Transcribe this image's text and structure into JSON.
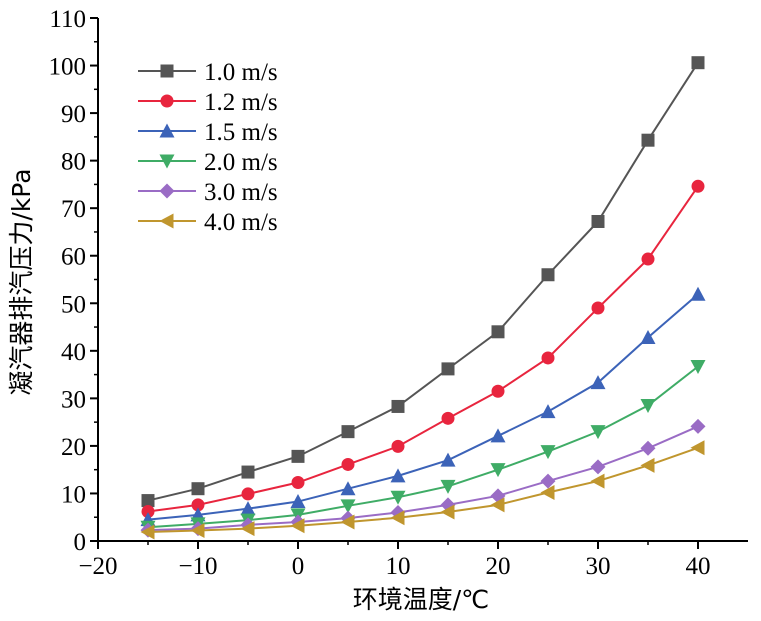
{
  "chart_data": {
    "type": "line",
    "title": "",
    "xlabel": "环境温度/℃",
    "ylabel": "凝汽器排汽压力/kPa",
    "xlim": [
      -20,
      45
    ],
    "ylim": [
      0,
      110
    ],
    "xticks": [
      -20,
      -10,
      0,
      10,
      20,
      30,
      40
    ],
    "yticks": [
      0,
      10,
      20,
      30,
      40,
      50,
      60,
      70,
      80,
      90,
      100,
      110
    ],
    "grid": false,
    "legend_position": "top-left",
    "x": [
      -15,
      -10,
      -5,
      0,
      5,
      10,
      15,
      20,
      25,
      30,
      35,
      40
    ],
    "series": [
      {
        "name": "1.0 m/s",
        "color": "#555555",
        "marker": "square",
        "values": [
          8.5,
          11.0,
          14.5,
          17.8,
          23.0,
          28.3,
          36.2,
          44.0,
          56.0,
          67.2,
          84.3,
          100.6
        ]
      },
      {
        "name": "1.2 m/s",
        "color": "#e8253e",
        "marker": "circle",
        "values": [
          6.2,
          7.6,
          9.9,
          12.3,
          16.1,
          19.9,
          25.8,
          31.5,
          38.5,
          49.0,
          59.3,
          74.6
        ]
      },
      {
        "name": "1.5 m/s",
        "color": "#3c63b8",
        "marker": "triangle-up",
        "values": [
          4.5,
          5.5,
          6.8,
          8.3,
          11.0,
          13.7,
          17.0,
          22.1,
          27.2,
          33.3,
          42.8,
          51.9
        ]
      },
      {
        "name": "2.0 m/s",
        "color": "#3fac66",
        "marker": "triangle-down",
        "values": [
          2.9,
          3.6,
          4.4,
          5.5,
          7.4,
          9.2,
          11.5,
          15.0,
          18.8,
          23.0,
          28.5,
          36.7
        ]
      },
      {
        "name": "3.0 m/s",
        "color": "#9a6cc5",
        "marker": "diamond",
        "values": [
          2.3,
          2.6,
          3.4,
          4.0,
          4.8,
          6.0,
          7.6,
          9.5,
          12.6,
          15.6,
          19.5,
          24.1
        ]
      },
      {
        "name": "4.0 m/s",
        "color": "#c0962e",
        "marker": "triangle-left",
        "values": [
          1.9,
          2.2,
          2.6,
          3.2,
          4.0,
          4.9,
          6.1,
          7.6,
          10.2,
          12.6,
          15.9,
          19.6
        ]
      }
    ]
  }
}
